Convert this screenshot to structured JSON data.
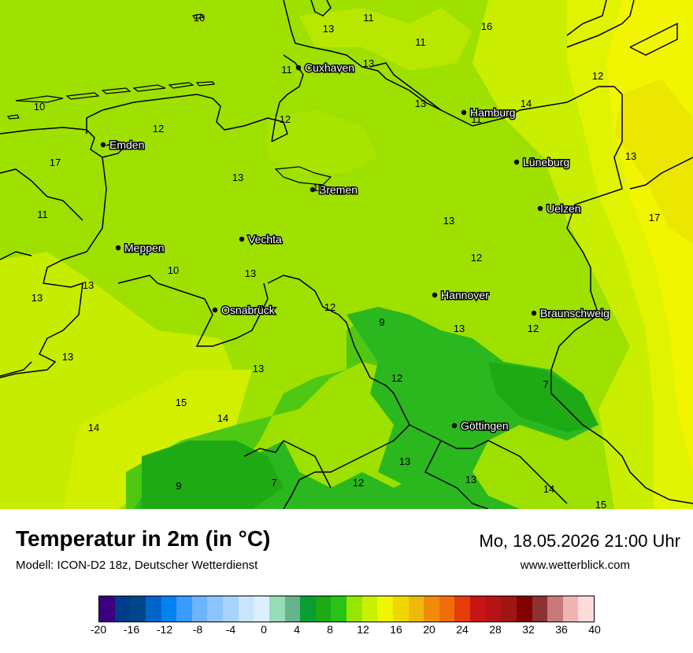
{
  "map": {
    "cities": [
      {
        "name": "Cuxhaven"
      },
      {
        "name": "Hamburg"
      },
      {
        "name": "Emden"
      },
      {
        "name": "Lüneburg"
      },
      {
        "name": "Bremen"
      },
      {
        "name": "Uelzen"
      },
      {
        "name": "Meppen"
      },
      {
        "name": "Vechta"
      },
      {
        "name": "Hannover"
      },
      {
        "name": "Osnabrück"
      },
      {
        "name": "Braunschweig"
      },
      {
        "name": "Göttingen"
      }
    ],
    "values": [
      "10",
      "11",
      "11",
      "13",
      "13",
      "11",
      "16",
      "12",
      "10",
      "12",
      "14",
      "13",
      "12",
      "11",
      "17",
      "13",
      "13",
      "11",
      "17",
      "11",
      "12",
      "13",
      "10",
      "13",
      "13",
      "12",
      "9",
      "13",
      "12",
      "13",
      "13",
      "13",
      "15",
      "14",
      "14",
      "7",
      "12",
      "7",
      "9",
      "12",
      "13",
      "13",
      "14",
      "15"
    ],
    "colors": {
      "sea": "#9ee000",
      "land_main": "#9ee000",
      "land_warm": "#c9ee00",
      "land_hot": "#f1f600",
      "land_cool": "#2ab81e",
      "land_mid": "#76d40a"
    }
  },
  "footer": {
    "title": "Temperatur in 2m (in °C)",
    "model": "Modell: ICON-D2 18z, Deutscher Wetterdienst",
    "datetime": "Mo, 18.05.2026 21:00 Uhr",
    "website": "www.wetterblick.com"
  },
  "scale": {
    "colors": [
      "#3b0082",
      "#003c8c",
      "#00468a",
      "#0064c8",
      "#0082f0",
      "#3a9bff",
      "#6cb4ff",
      "#8cc4ff",
      "#a6d4ff",
      "#c8e4ff",
      "#dceeff",
      "#96dcb4",
      "#64b48c",
      "#0a9e32",
      "#1eaa14",
      "#28c314",
      "#96e600",
      "#c8f000",
      "#f0f500",
      "#f0d700",
      "#f0b90a",
      "#f08c0a",
      "#f06e0a",
      "#e63c0a",
      "#c81414",
      "#b41414",
      "#a01414",
      "#820000",
      "#8c3232",
      "#c87878",
      "#f0b4b4",
      "#ffdcdc"
    ],
    "labels": [
      "-20",
      "-16",
      "-12",
      "-8",
      "-4",
      "0",
      "4",
      "8",
      "12",
      "16",
      "20",
      "24",
      "28",
      "32",
      "36",
      "40"
    ]
  }
}
